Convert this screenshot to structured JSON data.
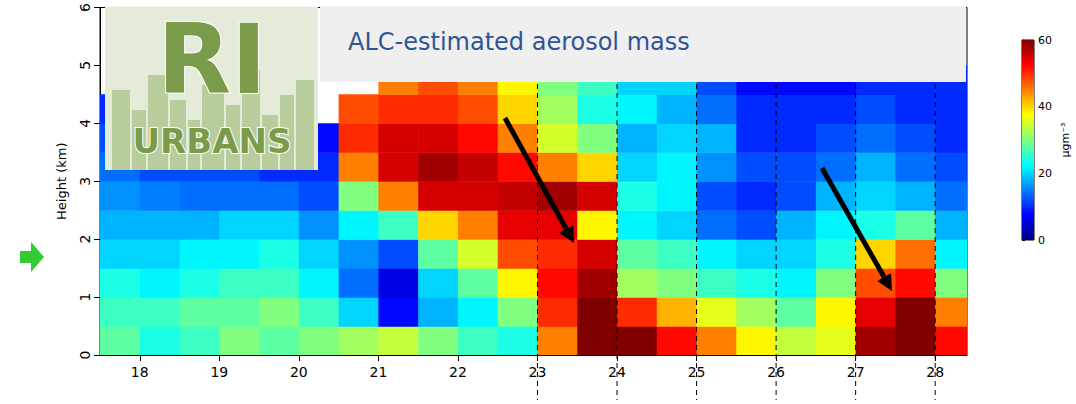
{
  "chart_data": {
    "type": "heatmap",
    "title": "ALC-estimated aerosol mass",
    "annotations": [
      "RI",
      "URBANS"
    ],
    "y_label": "Height (km)",
    "xlim": [
      17.5,
      28.4
    ],
    "xticks": [
      18,
      19,
      20,
      21,
      22,
      23,
      24,
      25,
      26,
      27,
      28
    ],
    "ylim": [
      0,
      6
    ],
    "yticks": [
      0,
      1,
      2,
      3,
      4,
      5,
      6
    ],
    "x_bins": [
      17.5,
      18,
      18.5,
      19,
      19.5,
      20,
      20.5,
      21,
      21.5,
      22,
      22.5,
      23,
      23.5,
      24,
      24.5,
      25,
      25.5,
      26,
      26.5,
      27,
      27.5,
      28,
      28.5
    ],
    "y_bins": [
      0,
      0.5,
      1,
      1.5,
      2,
      2.5,
      3,
      3.5,
      4,
      4.5,
      5
    ],
    "values": [
      [
        28,
        24,
        26,
        30,
        28,
        30,
        32,
        34,
        30,
        26,
        24,
        45,
        62,
        60,
        52,
        45,
        38,
        34,
        36,
        58,
        62,
        52
      ],
      [
        26,
        26,
        28,
        28,
        30,
        26,
        20,
        8,
        18,
        22,
        30,
        50,
        60,
        50,
        42,
        36,
        32,
        28,
        38,
        54,
        60,
        45
      ],
      [
        24,
        22,
        24,
        26,
        26,
        22,
        14,
        6,
        20,
        28,
        38,
        52,
        58,
        32,
        30,
        26,
        24,
        22,
        30,
        48,
        52,
        30
      ],
      [
        20,
        20,
        22,
        22,
        24,
        20,
        16,
        12,
        28,
        35,
        48,
        50,
        55,
        28,
        26,
        22,
        20,
        20,
        24,
        40,
        46,
        22
      ],
      [
        18,
        18,
        18,
        20,
        20,
        16,
        22,
        26,
        40,
        45,
        54,
        54,
        38,
        22,
        20,
        14,
        12,
        18,
        22,
        24,
        28,
        18
      ],
      [
        16,
        15,
        14,
        14,
        14,
        12,
        30,
        45,
        55,
        55,
        56,
        58,
        55,
        24,
        22,
        12,
        10,
        12,
        18,
        20,
        18,
        14
      ],
      [
        14,
        12,
        12,
        12,
        10,
        10,
        45,
        55,
        58,
        56,
        52,
        45,
        40,
        20,
        22,
        16,
        12,
        12,
        14,
        18,
        14,
        12
      ],
      [
        12,
        10,
        null,
        null,
        null,
        8,
        50,
        55,
        55,
        52,
        45,
        35,
        30,
        18,
        20,
        18,
        10,
        10,
        12,
        14,
        12,
        10
      ],
      [
        10,
        null,
        null,
        null,
        null,
        null,
        48,
        50,
        50,
        48,
        40,
        32,
        24,
        22,
        18,
        14,
        10,
        10,
        10,
        12,
        10,
        10
      ],
      [
        null,
        null,
        null,
        null,
        null,
        null,
        null,
        45,
        48,
        45,
        38,
        30,
        26,
        20,
        20,
        12,
        8,
        8,
        8,
        10,
        10,
        10
      ]
    ],
    "colorbar": {
      "range": [
        0,
        60
      ],
      "ticks": [
        0,
        20,
        40,
        60
      ],
      "label": "μgm⁻³"
    },
    "dashed_lines_x": [
      23,
      24,
      25,
      26,
      27,
      28
    ]
  }
}
